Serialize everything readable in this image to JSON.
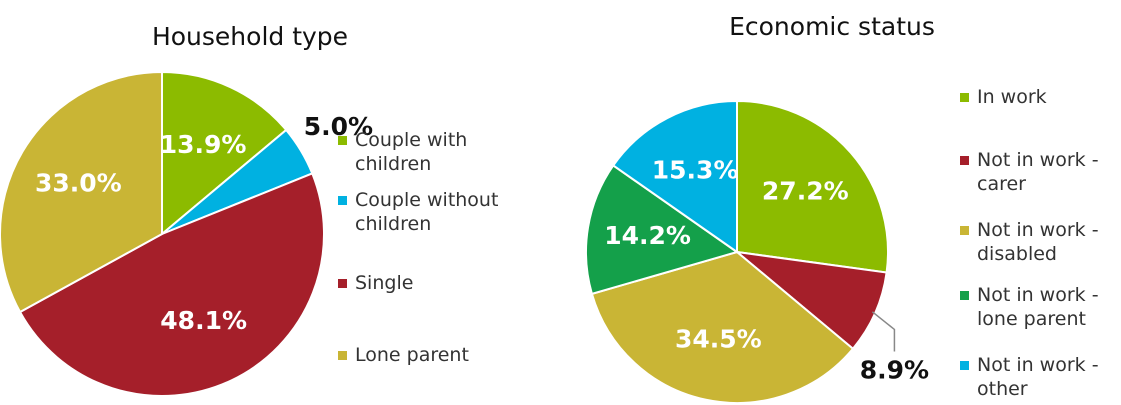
{
  "chart_data": [
    {
      "type": "pie",
      "title": "Household type",
      "categories": [
        "Couple with children",
        "Couple without children",
        "Single",
        "Lone parent"
      ],
      "values": [
        13.9,
        5.0,
        48.1,
        33.0
      ],
      "value_labels": [
        "13.9%",
        "5.0%",
        "48.1%",
        "33.0%"
      ],
      "colors": [
        "#8cbb00",
        "#00b1e1",
        "#a51f2a",
        "#c9b535"
      ]
    },
    {
      "type": "pie",
      "title": "Economic status",
      "categories": [
        "In work",
        "Not in work - carer",
        "Not in work - disabled",
        "Not in work - lone parent",
        "Not in work - other"
      ],
      "values": [
        27.2,
        8.9,
        34.5,
        14.2,
        15.3
      ],
      "value_labels": [
        "27.2%",
        "8.9%",
        "34.5%",
        "14.2%",
        "15.3%"
      ],
      "colors": [
        "#8cbb00",
        "#a51f2a",
        "#c9b535",
        "#14a04a",
        "#00b1e1"
      ]
    }
  ]
}
